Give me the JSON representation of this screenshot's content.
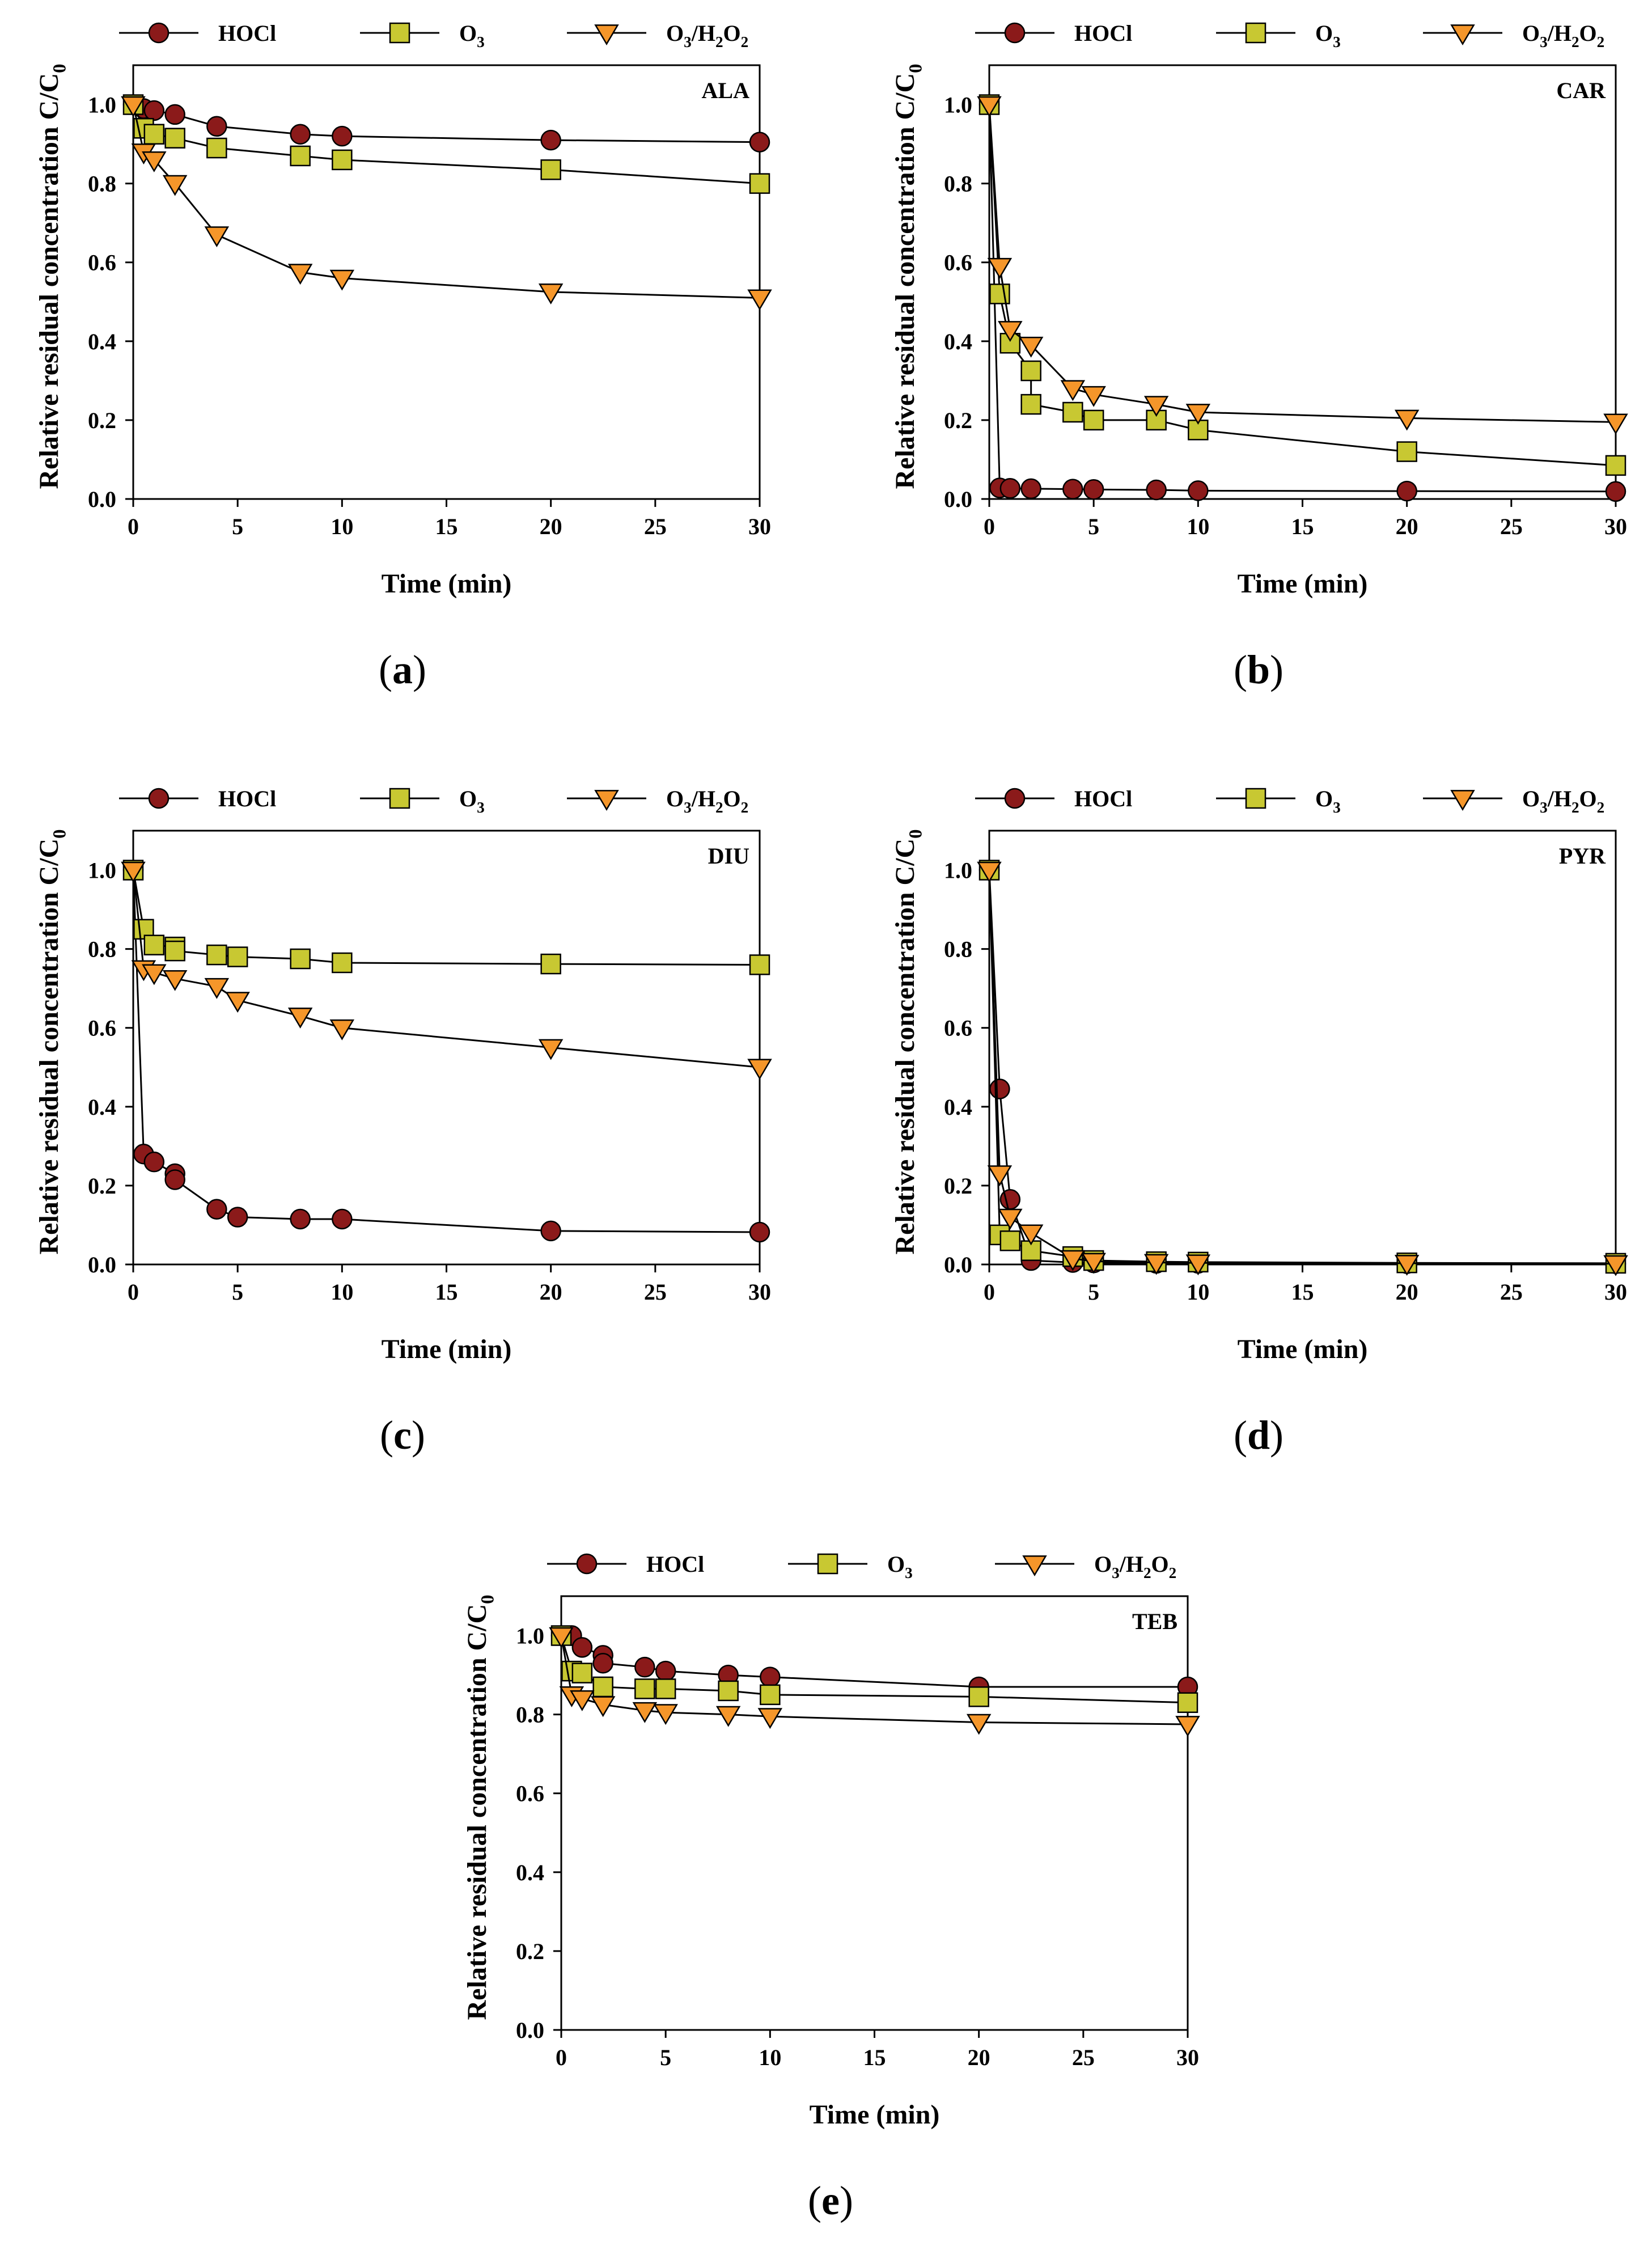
{
  "legend_labels": [
    "HOCl",
    "O3",
    "O3/H2O2"
  ],
  "colors": {
    "hocl": "#8b1a1a",
    "o3": "#c8c832",
    "o3h2o2": "#f5962a"
  },
  "chart_data": [
    {
      "id": "a",
      "type": "line",
      "caption": "a",
      "title": "ALA",
      "xlabel": "Time (min)",
      "ylabel": "Relative residual concentration C/C0",
      "xlim": [
        0,
        30
      ],
      "ylim": [
        0,
        1.1
      ],
      "xticks": [
        0,
        5,
        10,
        15,
        20,
        25,
        30
      ],
      "yticks": [
        0.0,
        0.2,
        0.4,
        0.6,
        0.8,
        1.0
      ],
      "series": [
        {
          "name": "HOCl",
          "x": [
            0,
            0.5,
            1,
            2,
            4,
            8,
            10,
            20,
            30
          ],
          "values": [
            1.0,
            0.99,
            0.985,
            0.975,
            0.945,
            0.925,
            0.92,
            0.91,
            0.905
          ]
        },
        {
          "name": "O3",
          "x": [
            0,
            0.5,
            1,
            2,
            4,
            8,
            10,
            20,
            30
          ],
          "values": [
            1.0,
            0.94,
            0.925,
            0.915,
            0.89,
            0.87,
            0.86,
            0.835,
            0.8
          ]
        },
        {
          "name": "O3/H2O2",
          "x": [
            0,
            0.5,
            1,
            2,
            4,
            8,
            10,
            20,
            30
          ],
          "values": [
            1.0,
            0.88,
            0.86,
            0.8,
            0.67,
            0.575,
            0.56,
            0.525,
            0.51
          ]
        }
      ]
    },
    {
      "id": "b",
      "type": "line",
      "caption": "b",
      "title": "CAR",
      "xlabel": "Time (min)",
      "ylabel": "Relative residual concentration C/C0",
      "xlim": [
        0,
        30
      ],
      "ylim": [
        0,
        1.1
      ],
      "xticks": [
        0,
        5,
        10,
        15,
        20,
        25,
        30
      ],
      "yticks": [
        0.0,
        0.2,
        0.4,
        0.6,
        0.8,
        1.0
      ],
      "series": [
        {
          "name": "HOCl",
          "x": [
            0,
            0.5,
            1,
            2,
            4,
            5,
            8,
            10,
            20,
            30
          ],
          "values": [
            1.0,
            0.028,
            0.027,
            0.026,
            0.025,
            0.024,
            0.023,
            0.021,
            0.02,
            0.019
          ]
        },
        {
          "name": "O3",
          "x": [
            0,
            0.5,
            1,
            2,
            2,
            4,
            5,
            8,
            10,
            20,
            30
          ],
          "values": [
            1.0,
            0.52,
            0.395,
            0.325,
            0.24,
            0.22,
            0.2,
            0.2,
            0.175,
            0.12,
            0.085
          ]
        },
        {
          "name": "O3/H2O2",
          "x": [
            0,
            0.5,
            1,
            2,
            4,
            5,
            8,
            10,
            20,
            30
          ],
          "values": [
            1.0,
            0.59,
            0.43,
            0.39,
            0.28,
            0.265,
            0.24,
            0.22,
            0.205,
            0.195
          ]
        }
      ]
    },
    {
      "id": "c",
      "type": "line",
      "caption": "c",
      "title": "DIU",
      "xlabel": "Time (min)",
      "ylabel": "Relative residual concentration C/C0",
      "xlim": [
        0,
        30
      ],
      "ylim": [
        0,
        1.1
      ],
      "xticks": [
        0,
        5,
        10,
        15,
        20,
        25,
        30
      ],
      "yticks": [
        0.0,
        0.2,
        0.4,
        0.6,
        0.8,
        1.0
      ],
      "series": [
        {
          "name": "HOCl",
          "x": [
            0,
            0.5,
            1,
            2,
            2,
            4,
            5,
            8,
            10,
            20,
            30
          ],
          "values": [
            1.0,
            0.28,
            0.26,
            0.23,
            0.215,
            0.14,
            0.12,
            0.115,
            0.115,
            0.085,
            0.082
          ]
        },
        {
          "name": "O3",
          "x": [
            0,
            0.5,
            1,
            2,
            2,
            4,
            5,
            8,
            10,
            20,
            30
          ],
          "values": [
            1.0,
            0.85,
            0.81,
            0.805,
            0.795,
            0.785,
            0.78,
            0.775,
            0.765,
            0.762,
            0.76
          ]
        },
        {
          "name": "O3/H2O2",
          "x": [
            0,
            0.5,
            1,
            2,
            4,
            5,
            8,
            10,
            20,
            30
          ],
          "values": [
            1.0,
            0.75,
            0.74,
            0.725,
            0.705,
            0.67,
            0.63,
            0.6,
            0.55,
            0.5
          ]
        }
      ]
    },
    {
      "id": "d",
      "type": "line",
      "caption": "d",
      "title": "PYR",
      "xlabel": "Time (min)",
      "ylabel": "Relative residual concentration C/C0",
      "xlim": [
        0,
        30
      ],
      "ylim": [
        0,
        1.1
      ],
      "xticks": [
        0,
        5,
        10,
        15,
        20,
        25,
        30
      ],
      "yticks": [
        0.0,
        0.2,
        0.4,
        0.6,
        0.8,
        1.0
      ],
      "series": [
        {
          "name": "HOCl",
          "x": [
            0,
            0.5,
            1,
            2,
            4,
            5,
            8,
            10,
            20,
            30
          ],
          "values": [
            1.0,
            0.445,
            0.165,
            0.01,
            0.005,
            0.004,
            0.003,
            0.003,
            0.002,
            0.002
          ]
        },
        {
          "name": "O3",
          "x": [
            0,
            0.5,
            1,
            2,
            4,
            5,
            8,
            10,
            20,
            30
          ],
          "values": [
            1.0,
            0.075,
            0.06,
            0.035,
            0.02,
            0.01,
            0.007,
            0.006,
            0.004,
            0.003
          ]
        },
        {
          "name": "O3/H2O2",
          "x": [
            0,
            0.5,
            1,
            2,
            4,
            5,
            8,
            10,
            20,
            30
          ],
          "values": [
            1.0,
            0.23,
            0.12,
            0.08,
            0.015,
            0.008,
            0.005,
            0.004,
            0.003,
            0.002
          ]
        }
      ]
    },
    {
      "id": "e",
      "type": "line",
      "caption": "e",
      "title": "TEB",
      "xlabel": "Time (min)",
      "ylabel": "Relative residual concentration C/C0",
      "xlim": [
        0,
        30
      ],
      "ylim": [
        0,
        1.1
      ],
      "xticks": [
        0,
        5,
        10,
        15,
        20,
        25,
        30
      ],
      "yticks": [
        0.0,
        0.2,
        0.4,
        0.6,
        0.8,
        1.0
      ],
      "series": [
        {
          "name": "HOCl",
          "x": [
            0,
            0.5,
            1,
            2,
            2,
            4,
            5,
            8,
            10,
            20,
            30
          ],
          "values": [
            1.0,
            1.0,
            0.97,
            0.95,
            0.93,
            0.92,
            0.91,
            0.9,
            0.895,
            0.87,
            0.87
          ]
        },
        {
          "name": "O3",
          "x": [
            0,
            0.5,
            1,
            2,
            4,
            5,
            8,
            10,
            20,
            30
          ],
          "values": [
            1.0,
            0.91,
            0.905,
            0.87,
            0.865,
            0.865,
            0.86,
            0.85,
            0.845,
            0.83
          ]
        },
        {
          "name": "O3/H2O2",
          "x": [
            0,
            0.5,
            1,
            2,
            4,
            5,
            8,
            10,
            20,
            30
          ],
          "values": [
            1.0,
            0.85,
            0.84,
            0.825,
            0.81,
            0.805,
            0.8,
            0.795,
            0.78,
            0.775
          ]
        }
      ]
    }
  ]
}
